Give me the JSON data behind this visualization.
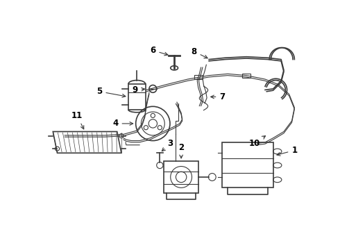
{
  "background_color": "#ffffff",
  "line_color": "#3a3a3a",
  "label_color": "#000000",
  "figsize": [
    4.9,
    3.6
  ],
  "dpi": 100,
  "xlim": [
    0,
    490
  ],
  "ylim": [
    0,
    360
  ]
}
